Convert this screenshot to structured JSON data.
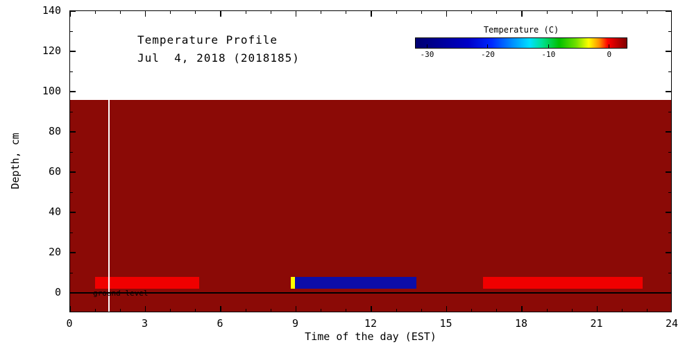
{
  "chart_data": {
    "type": "heatmap",
    "title": "Temperature Profile",
    "subtitle": "Jul  4, 2018 (2018185)",
    "xlabel": "Time of the day (EST)",
    "ylabel": "Depth, cm",
    "xlim": [
      0,
      24
    ],
    "ylim": [
      -10,
      140
    ],
    "x_major_ticks": [
      0,
      3,
      6,
      9,
      12,
      15,
      18,
      21,
      24
    ],
    "x_minor_step": 1,
    "y_major_ticks": [
      0,
      20,
      40,
      60,
      80,
      100,
      120,
      140
    ],
    "y_minor_step": 10,
    "axis_color": "#000000",
    "background_color": "#ffffff",
    "soil_region": {
      "x0": 0,
      "x1": 24,
      "depth_top": 96,
      "extends_to_plot_bottom": true,
      "color": "#8b0a06"
    },
    "ground_line": {
      "depth": 0,
      "color": "#000000",
      "label": "ground level"
    },
    "marker_line": {
      "x": 1.55,
      "color": "#ffffff"
    },
    "surface_bars": [
      {
        "x0": 1.0,
        "x1": 5.15,
        "depth_top": 8,
        "depth_bottom": 2,
        "color": "#f00000"
      },
      {
        "x0": 8.8,
        "x1": 8.95,
        "depth_top": 8,
        "depth_bottom": 2,
        "color": "#ffff00"
      },
      {
        "x0": 8.95,
        "x1": 13.8,
        "depth_top": 8,
        "depth_bottom": 2,
        "color": "#0d0da8"
      },
      {
        "x0": 16.45,
        "x1": 22.8,
        "depth_top": 8,
        "depth_bottom": 2,
        "color": "#f00000"
      }
    ],
    "colorbar": {
      "title": "Temperature (C)",
      "ticks": [
        -30,
        -20,
        -10,
        0
      ],
      "range": [
        -32,
        3
      ],
      "gradient": [
        {
          "pos": 0.0,
          "color": "#000070"
        },
        {
          "pos": 0.25,
          "color": "#0000c8"
        },
        {
          "pos": 0.36,
          "color": "#0028ff"
        },
        {
          "pos": 0.46,
          "color": "#0090ff"
        },
        {
          "pos": 0.54,
          "color": "#00e0ff"
        },
        {
          "pos": 0.6,
          "color": "#00e090"
        },
        {
          "pos": 0.68,
          "color": "#00c000"
        },
        {
          "pos": 0.76,
          "color": "#70e000"
        },
        {
          "pos": 0.82,
          "color": "#ffff00"
        },
        {
          "pos": 0.87,
          "color": "#ff9000"
        },
        {
          "pos": 0.91,
          "color": "#ff0000"
        },
        {
          "pos": 1.0,
          "color": "#7f0000"
        }
      ]
    }
  }
}
